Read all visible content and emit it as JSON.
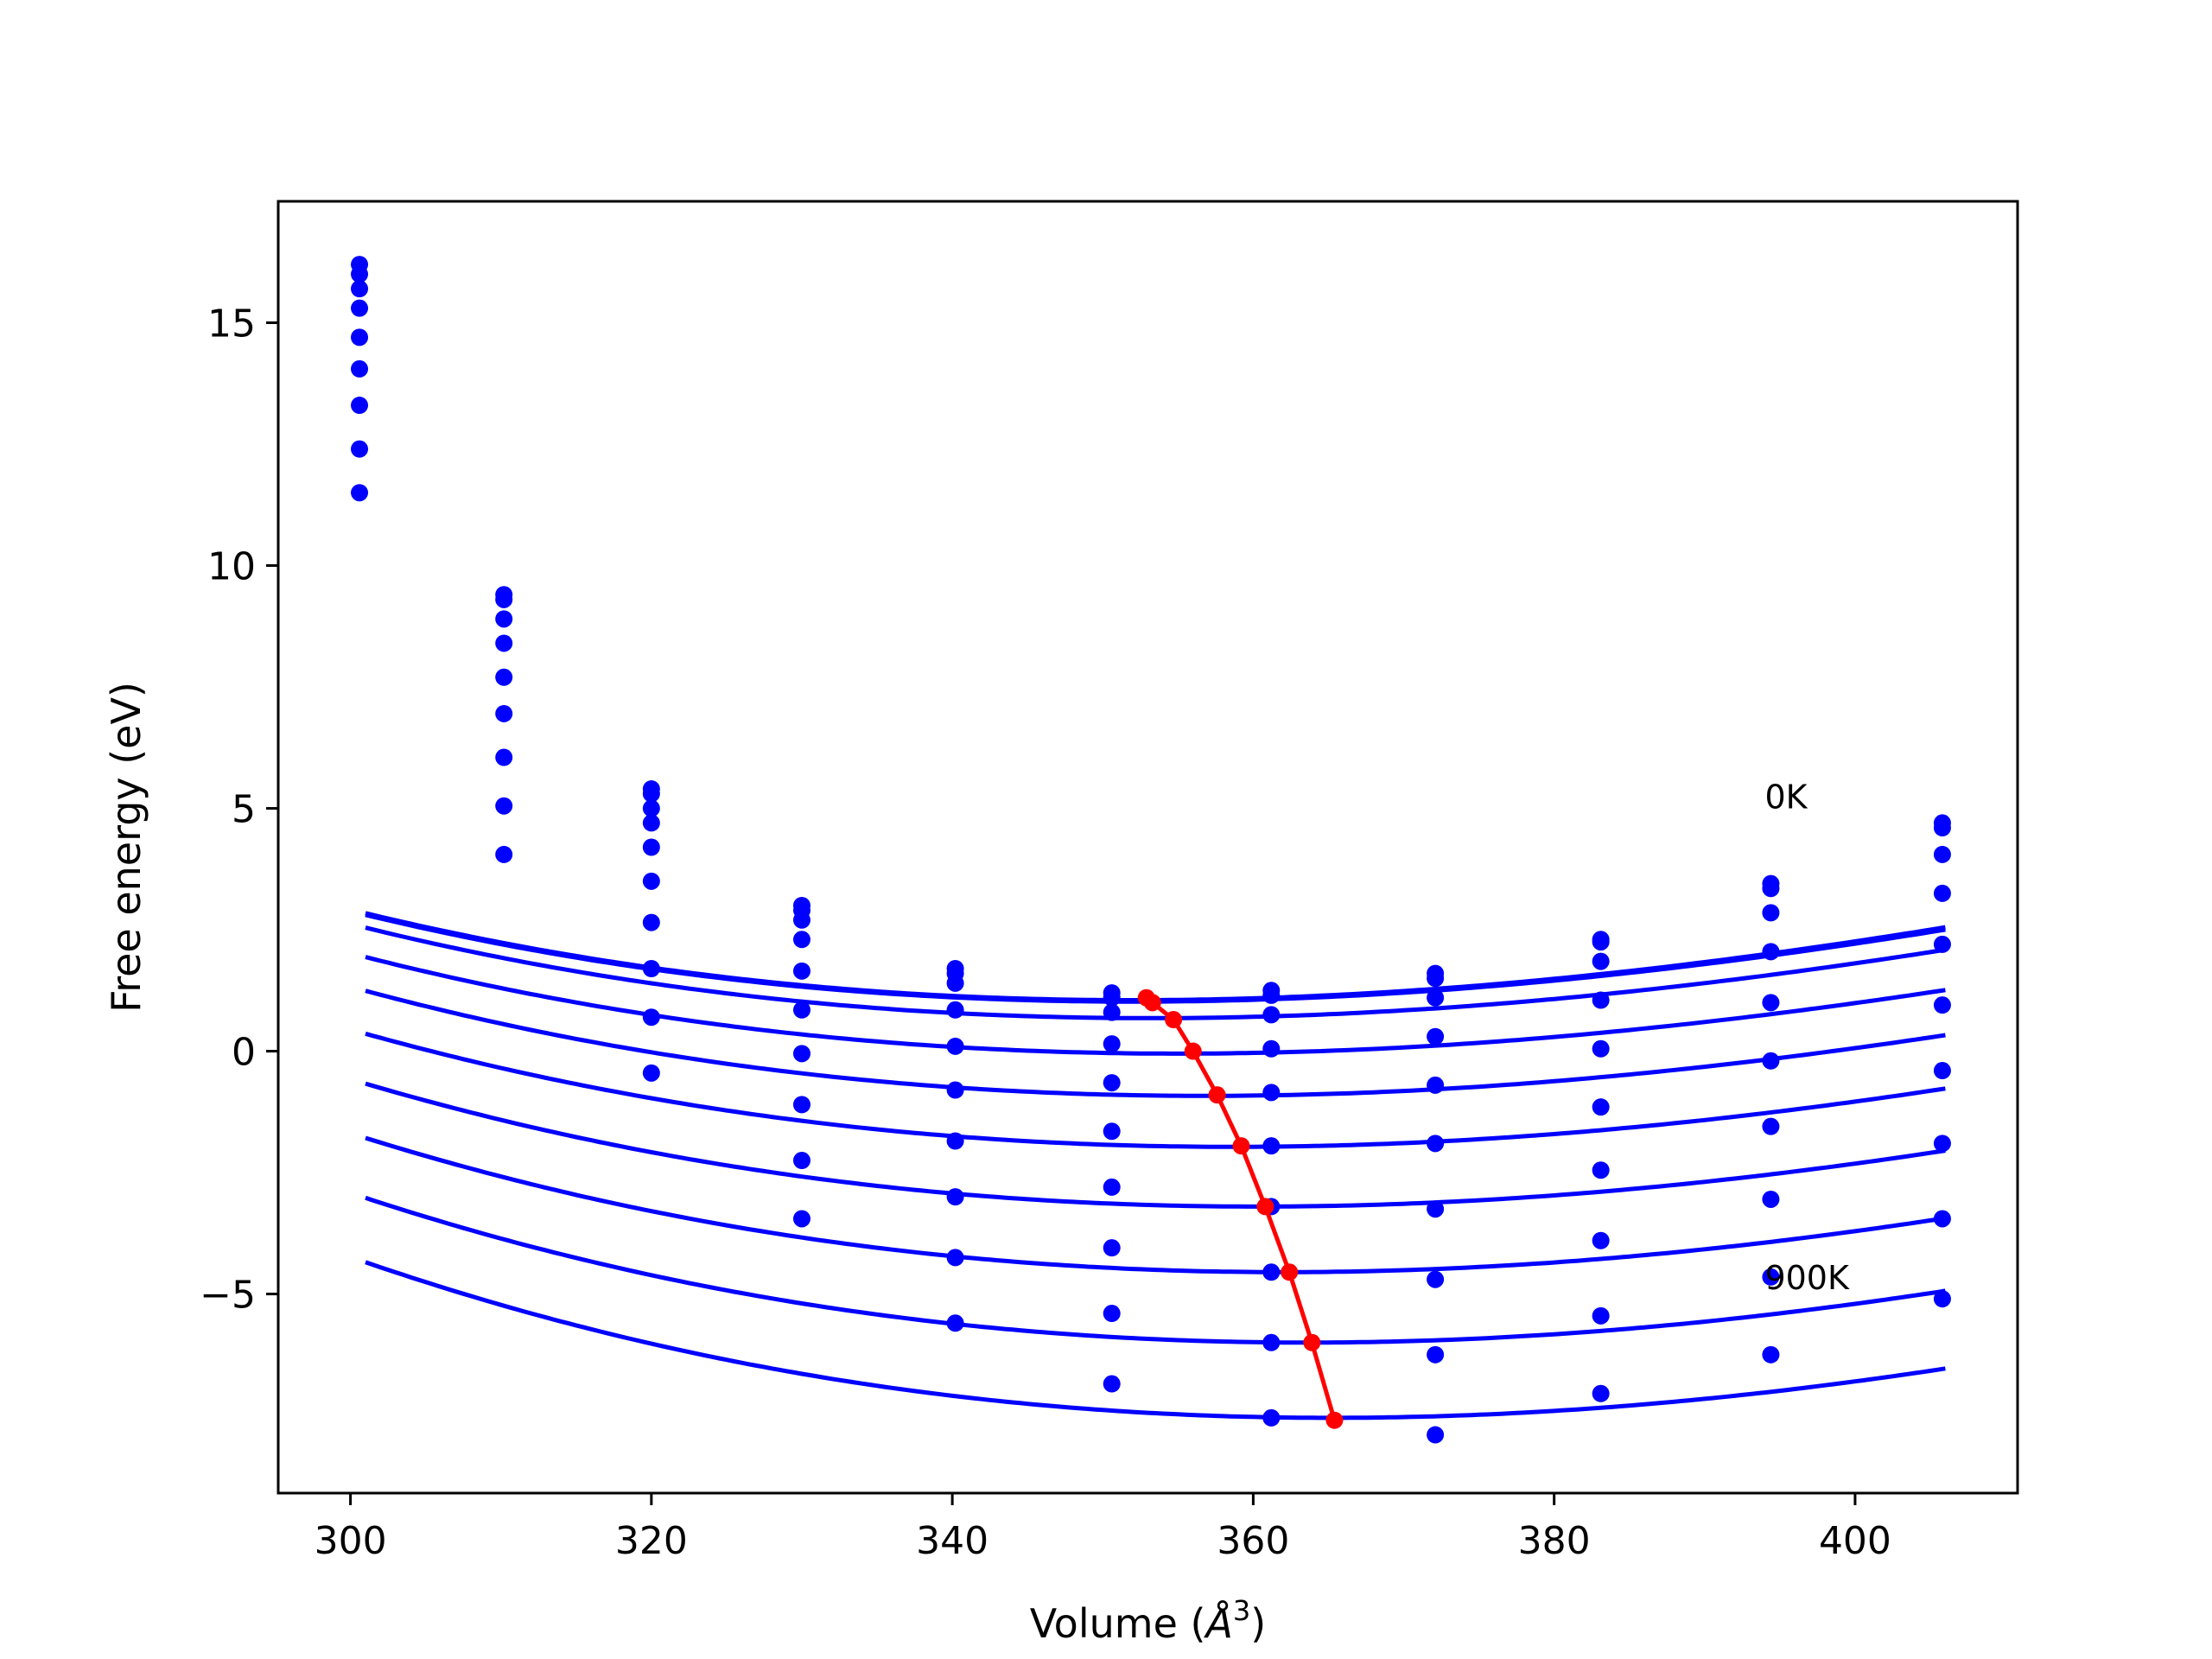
{
  "chart_data": {
    "type": "line",
    "xlabel": "Volume (Å³)",
    "xlabel_parts": [
      "Volume (",
      "Å",
      "3",
      ")"
    ],
    "ylabel": "Free energy (eV)",
    "xlim": [
      295.2,
      410.8
    ],
    "ylim": [
      -9.1,
      17.5
    ],
    "xticks": [
      300,
      320,
      340,
      360,
      380,
      400
    ],
    "yticks": [
      -5,
      0,
      5,
      10,
      15
    ],
    "ytick_labels": [
      "−5",
      "0",
      "5",
      "10",
      "15"
    ],
    "grid": false,
    "annotations": [
      {
        "text": "0K",
        "x": 394,
        "y": 5.0
      },
      {
        "text": "900K",
        "x": 394,
        "y": -4.9
      }
    ],
    "colors": {
      "series": "#0000ff",
      "minima": "#ff0000"
    },
    "x": [
      300.6,
      310.2,
      320.0,
      330.0,
      340.2,
      350.6,
      361.2,
      372.1,
      383.1,
      394.4,
      405.8
    ],
    "series": [
      {
        "values": [
          16.2,
          9.4,
          5.4,
          3.0,
          1.7,
          1.2,
          1.25,
          1.6,
          2.3,
          3.45,
          4.7
        ]
      },
      {
        "values": [
          16.0,
          9.3,
          5.3,
          2.9,
          1.6,
          1.1,
          1.15,
          1.5,
          2.25,
          3.35,
          4.6
        ]
      },
      {
        "values": [
          15.7,
          8.9,
          5.0,
          2.7,
          1.4,
          0.8,
          0.75,
          1.1,
          1.85,
          2.85,
          4.05
        ]
      },
      {
        "values": [
          15.3,
          8.4,
          4.7,
          2.3,
          0.85,
          0.15,
          0.05,
          0.3,
          1.05,
          2.05,
          3.25
        ]
      },
      {
        "values": [
          14.7,
          7.7,
          4.2,
          1.65,
          0.1,
          -0.65,
          -0.85,
          -0.7,
          0.05,
          1.0,
          2.2
        ]
      },
      {
        "values": [
          14.05,
          6.95,
          3.5,
          0.85,
          -0.8,
          -1.65,
          -1.95,
          -1.9,
          -1.15,
          -0.2,
          0.95
        ]
      },
      {
        "values": [
          13.3,
          6.05,
          2.65,
          -0.05,
          -1.85,
          -2.8,
          -3.2,
          -3.25,
          -2.45,
          -1.55,
          -0.4
        ]
      },
      {
        "values": [
          12.4,
          5.05,
          1.7,
          -1.1,
          -3.0,
          -4.05,
          -4.55,
          -4.7,
          -3.9,
          -3.05,
          -1.9
        ]
      },
      {
        "values": [
          11.5,
          4.05,
          0.7,
          -2.25,
          -4.25,
          -5.4,
          -6.0,
          -6.25,
          -5.45,
          -4.65,
          -3.45
        ]
      },
      {
        "values": [
          null,
          null,
          -0.45,
          -3.45,
          -5.6,
          -6.85,
          -7.55,
          -7.9,
          -7.05,
          -6.25,
          -5.1
        ]
      }
    ],
    "fits": [
      {
        "V0": 351.9,
        "E0": 1.05,
        "a": 0.000605,
        "b": -1.7e-06
      },
      {
        "V0": 352.0,
        "E0": 1.02,
        "a": 0.0006,
        "b": -1.7e-06
      },
      {
        "V0": 353.2,
        "E0": 0.68,
        "a": 0.000595,
        "b": -1.7e-06
      },
      {
        "V0": 355.0,
        "E0": -0.05,
        "a": 0.00059,
        "b": -1.7e-06
      },
      {
        "V0": 356.8,
        "E0": -0.92,
        "a": 0.0006,
        "b": -1.7e-06
      },
      {
        "V0": 358.6,
        "E0": -1.97,
        "a": 0.00061,
        "b": -1.6e-06
      },
      {
        "V0": 360.3,
        "E0": -3.2,
        "a": 0.000625,
        "b": -1.6e-06
      },
      {
        "V0": 362.0,
        "E0": -4.55,
        "a": 0.000645,
        "b": -1.6e-06
      },
      {
        "V0": 363.6,
        "E0": -6.0,
        "a": 0.00066,
        "b": -1.6e-06
      },
      {
        "V0": 365.2,
        "E0": -7.55,
        "a": 0.000675,
        "b": -1.6e-06
      }
    ],
    "minima_path": {
      "x": [
        352.9,
        353.3,
        354.7,
        356.0,
        357.6,
        359.2,
        360.8,
        362.4,
        363.9,
        365.4
      ],
      "y": [
        1.1,
        1.0,
        0.65,
        0.0,
        -0.9,
        -1.95,
        -3.2,
        -4.55,
        -6.0,
        -7.6
      ]
    }
  }
}
